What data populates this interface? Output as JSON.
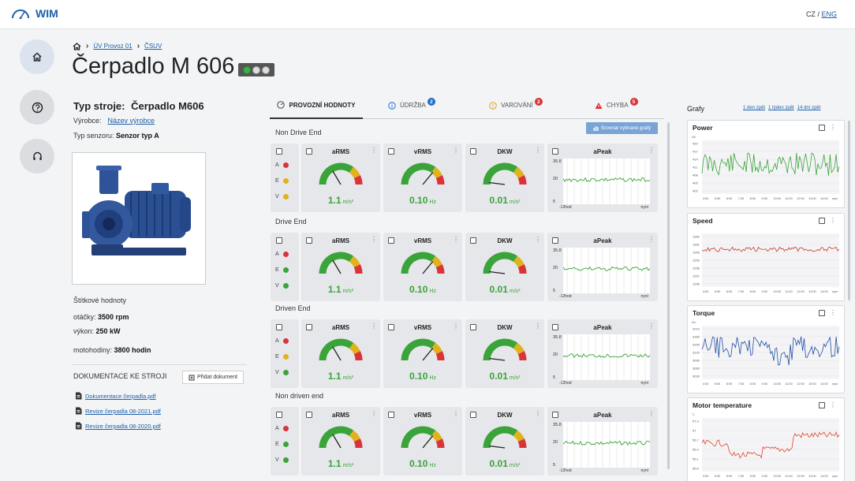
{
  "app": {
    "name": "WIM",
    "lang_cz": "CZ",
    "lang_sep": "/",
    "lang_eng": "ENG"
  },
  "breadcrumb": {
    "items": [
      "ÚV Provoz 01",
      "ČSUV"
    ]
  },
  "page": {
    "title": "Čerpadlo M 606"
  },
  "machine": {
    "type_label": "Typ stroje:",
    "type_value": "Čerpadlo M606",
    "maker_label": "Výrobce:",
    "maker_value": "Název výrobce",
    "sensor_label": "Typ senzoru:",
    "sensor_value": "Senzor typ A",
    "nameplate_title": "Štítkové hodnoty",
    "rpm_label": "otáčky:",
    "rpm_value": "3500 rpm",
    "power_label": "výkon:",
    "power_value": "250 kW",
    "hours_label": "motohodiny:",
    "hours_value": "3800 hodin"
  },
  "docs": {
    "title": "DOKUMENTACE KE STROJI",
    "add_label": "Přidat dokument",
    "files": [
      "Dokumentace čerpadla.pdf",
      "Revize čerpadla 08-2021.pdf",
      "Revize čerpadla 08-2020.pdf"
    ]
  },
  "tabs": [
    {
      "label": "PROVOZNÍ HODNOTY",
      "badge": ""
    },
    {
      "label": "ÚDRŽBA",
      "badge": "2"
    },
    {
      "label": "VAROVÁNÍ",
      "badge": "2"
    },
    {
      "label": "CHYBA",
      "badge": "5"
    }
  ],
  "colors": {
    "badge_blue": "#1e6fd0",
    "badge_red": "#d9343a",
    "green": "#3aa43a",
    "red": "#d9343a",
    "amber": "#e0b21d"
  },
  "compare_button": "Srovnat vybrané grafy",
  "sections": [
    {
      "label": "Non Drive End",
      "status": [
        "red",
        "amber",
        "amber"
      ]
    },
    {
      "label": "Drive End",
      "status": [
        "red",
        "green",
        "green"
      ]
    },
    {
      "label": "Driven End",
      "status": [
        "red",
        "amber",
        "green"
      ]
    },
    {
      "label": "Non driven end",
      "status": [
        "red",
        "green",
        "green"
      ]
    }
  ],
  "status_letters": [
    "A",
    "E",
    "V"
  ],
  "metrics": {
    "arms": {
      "title": "aRMS",
      "value": "1.1",
      "unit": "m/s²"
    },
    "vrms": {
      "title": "vRMS",
      "value": "0.10",
      "unit": "Hz"
    },
    "dkw": {
      "title": "DKW",
      "value": "0.01",
      "unit": "m/s²"
    },
    "apeak": {
      "title": "aPeak",
      "y_max": "35.8",
      "y_mid": "20",
      "y_min": "5",
      "x_start": "-12hod",
      "x_end": "nyní"
    }
  },
  "right_panel": {
    "title": "Grafy",
    "ranges": [
      "1 den zpět",
      "1 týden zpět",
      "14 dní zpět"
    ],
    "x_ticks": [
      "4:00",
      "5:00",
      "6:00",
      "7:00",
      "8:00",
      "9:00",
      "10:00",
      "11:00",
      "12:00",
      "13:00",
      "14:00",
      "nyní"
    ],
    "charts": [
      {
        "title": "Power",
        "color": "#3aa43a",
        "unit": "kW",
        "y_ticks": [
          "420",
          "417",
          "414",
          "411",
          "408",
          "405",
          "402"
        ]
      },
      {
        "title": "Speed",
        "color": "#c0392b",
        "unit": "",
        "y_ticks": [
          "1262",
          "1261",
          "1260",
          "1259",
          "1258",
          "1257",
          "1256"
        ]
      },
      {
        "title": "Torque",
        "color": "#1f4fa3",
        "unit": "Nm",
        "y_ticks": [
          "3210",
          "3180",
          "3150",
          "3120",
          "3090",
          "3060",
          "3030"
        ]
      },
      {
        "title": "Motor temperature",
        "color": "#e0442c",
        "unit": "°C",
        "y_ticks": [
          "57.3",
          "57",
          "56.7",
          "56.4",
          "56.1",
          "55.8"
        ]
      }
    ]
  }
}
